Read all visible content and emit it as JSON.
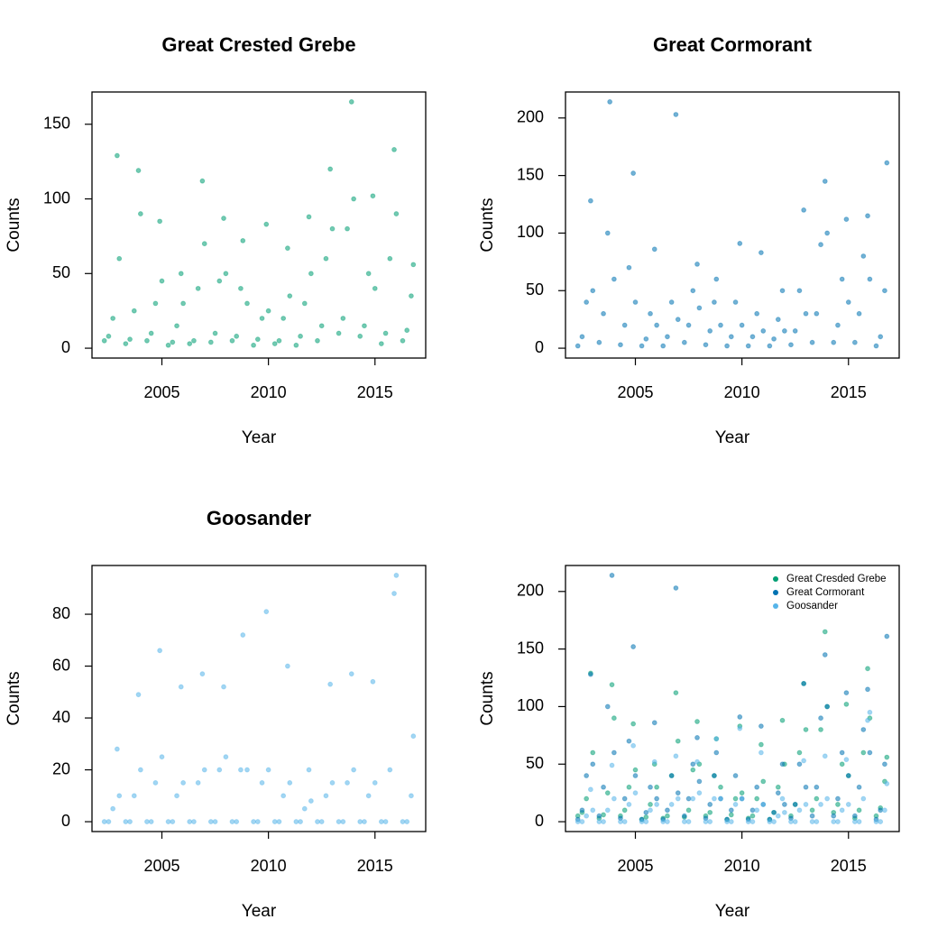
{
  "chart_data": [
    {
      "type": "scatter",
      "title": "Great Crested Grebe",
      "xlabel": "Year",
      "ylabel": "Counts",
      "xlim": [
        2001.72,
        2017.38
      ],
      "ylim": [
        -6.6,
        171.6
      ],
      "xticks": [
        2005,
        2010,
        2015
      ],
      "yticks": [
        0,
        50,
        100,
        150
      ],
      "x": [
        2002.3,
        2002.5,
        2002.7,
        2002.9,
        2003.0,
        2003.3,
        2003.5,
        2003.7,
        2003.9,
        2004.0,
        2004.3,
        2004.5,
        2004.7,
        2004.9,
        2005.0,
        2005.3,
        2005.5,
        2005.7,
        2005.9,
        2006.0,
        2006.3,
        2006.5,
        2006.7,
        2006.9,
        2007.0,
        2007.3,
        2007.5,
        2007.7,
        2007.9,
        2008.0,
        2008.3,
        2008.5,
        2008.7,
        2008.8,
        2009.0,
        2009.3,
        2009.5,
        2009.7,
        2009.9,
        2010.0,
        2010.3,
        2010.5,
        2010.7,
        2010.9,
        2011.0,
        2011.3,
        2011.5,
        2011.7,
        2011.9,
        2012.0,
        2012.3,
        2012.5,
        2012.7,
        2012.9,
        2013.0,
        2013.3,
        2013.5,
        2013.7,
        2013.9,
        2014.0,
        2014.3,
        2014.5,
        2014.7,
        2014.9,
        2015.0,
        2015.3,
        2015.5,
        2015.7,
        2015.9,
        2016.0,
        2016.3,
        2016.5,
        2016.7,
        2016.8
      ],
      "series": [
        {
          "color": "#009E73",
          "values": [
            5,
            8,
            20,
            129,
            60,
            3,
            6,
            25,
            119,
            90,
            5,
            10,
            30,
            85,
            45,
            2,
            4,
            15,
            50,
            30,
            3,
            5,
            40,
            112,
            70,
            4,
            10,
            45,
            87,
            50,
            5,
            8,
            40,
            72,
            30,
            2,
            6,
            20,
            83,
            25,
            3,
            5,
            20,
            67,
            35,
            2,
            8,
            30,
            88,
            50,
            5,
            15,
            60,
            120,
            80,
            10,
            20,
            80,
            165,
            100,
            8,
            15,
            50,
            102,
            40,
            3,
            10,
            60,
            133,
            90,
            5,
            12,
            35,
            56
          ]
        }
      ]
    },
    {
      "type": "scatter",
      "title": "Great Cormorant",
      "xlabel": "Year",
      "ylabel": "Counts",
      "xlim": [
        2001.72,
        2017.38
      ],
      "ylim": [
        -8.56,
        222.56
      ],
      "xticks": [
        2005,
        2010,
        2015
      ],
      "yticks": [
        0,
        50,
        100,
        150,
        200
      ],
      "x": [
        2002.3,
        2002.5,
        2002.7,
        2002.9,
        2003.0,
        2003.3,
        2003.5,
        2003.7,
        2003.8,
        2004.0,
        2004.3,
        2004.5,
        2004.7,
        2004.9,
        2005.0,
        2005.3,
        2005.5,
        2005.7,
        2005.9,
        2006.0,
        2006.3,
        2006.5,
        2006.7,
        2006.9,
        2007.0,
        2007.3,
        2007.5,
        2007.7,
        2007.9,
        2008.0,
        2008.3,
        2008.5,
        2008.7,
        2008.8,
        2009.0,
        2009.3,
        2009.5,
        2009.7,
        2009.9,
        2010.0,
        2010.3,
        2010.5,
        2010.7,
        2010.9,
        2011.0,
        2011.3,
        2011.5,
        2011.7,
        2011.9,
        2012.0,
        2012.3,
        2012.5,
        2012.7,
        2012.9,
        2013.0,
        2013.3,
        2013.5,
        2013.7,
        2013.9,
        2014.0,
        2014.3,
        2014.5,
        2014.7,
        2014.9,
        2015.0,
        2015.3,
        2015.5,
        2015.7,
        2015.9,
        2016.0,
        2016.3,
        2016.5,
        2016.7,
        2016.8
      ],
      "series": [
        {
          "color": "#0072B2",
          "values": [
            2,
            10,
            40,
            128,
            50,
            5,
            30,
            100,
            214,
            60,
            3,
            20,
            70,
            152,
            40,
            2,
            8,
            30,
            86,
            20,
            2,
            10,
            40,
            203,
            25,
            5,
            20,
            50,
            73,
            35,
            3,
            15,
            40,
            60,
            20,
            2,
            10,
            40,
            91,
            20,
            2,
            10,
            30,
            83,
            15,
            2,
            8,
            25,
            50,
            15,
            3,
            15,
            50,
            120,
            30,
            5,
            30,
            90,
            145,
            100,
            5,
            20,
            60,
            112,
            40,
            5,
            30,
            80,
            115,
            60,
            2,
            10,
            50,
            161
          ]
        }
      ]
    },
    {
      "type": "scatter",
      "title": "Goosander",
      "xlabel": "Year",
      "ylabel": "Counts",
      "xlim": [
        2001.72,
        2017.38
      ],
      "ylim": [
        -3.8,
        98.8
      ],
      "xticks": [
        2005,
        2010,
        2015
      ],
      "yticks": [
        0,
        20,
        40,
        60,
        80
      ],
      "x": [
        2002.3,
        2002.5,
        2002.7,
        2002.9,
        2003.0,
        2003.3,
        2003.5,
        2003.7,
        2003.9,
        2004.0,
        2004.3,
        2004.5,
        2004.7,
        2004.9,
        2005.0,
        2005.3,
        2005.5,
        2005.7,
        2005.9,
        2006.0,
        2006.3,
        2006.5,
        2006.7,
        2006.9,
        2007.0,
        2007.3,
        2007.5,
        2007.7,
        2007.9,
        2008.0,
        2008.3,
        2008.5,
        2008.7,
        2008.8,
        2009.0,
        2009.3,
        2009.5,
        2009.7,
        2009.9,
        2010.0,
        2010.3,
        2010.5,
        2010.7,
        2010.9,
        2011.0,
        2011.3,
        2011.5,
        2011.7,
        2011.9,
        2012.0,
        2012.3,
        2012.5,
        2012.7,
        2012.9,
        2013.0,
        2013.3,
        2013.5,
        2013.7,
        2013.9,
        2014.0,
        2014.3,
        2014.5,
        2014.7,
        2014.9,
        2015.0,
        2015.3,
        2015.5,
        2015.7,
        2015.9,
        2016.0,
        2016.3,
        2016.5,
        2016.7,
        2016.8
      ],
      "series": [
        {
          "color": "#56B4E9",
          "values": [
            0,
            0,
            5,
            28,
            10,
            0,
            0,
            10,
            49,
            20,
            0,
            0,
            15,
            66,
            25,
            0,
            0,
            10,
            52,
            15,
            0,
            0,
            15,
            57,
            20,
            0,
            0,
            20,
            52,
            25,
            0,
            0,
            20,
            72,
            20,
            0,
            0,
            15,
            81,
            20,
            0,
            0,
            10,
            60,
            15,
            0,
            0,
            5,
            20,
            8,
            0,
            0,
            10,
            53,
            15,
            0,
            0,
            15,
            57,
            20,
            0,
            0,
            10,
            54,
            15,
            0,
            0,
            20,
            88,
            95,
            0,
            0,
            10,
            33
          ]
        }
      ]
    },
    {
      "type": "scatter",
      "xlabel": "Year",
      "ylabel": "Counts",
      "legend": "topright",
      "xlim": [
        2001.72,
        2017.38
      ],
      "ylim": [
        -8.56,
        222.56
      ],
      "xticks": [
        2005,
        2010,
        2015
      ],
      "yticks": [
        0,
        50,
        100,
        150,
        200
      ],
      "x": [
        2002.3,
        2002.5,
        2002.7,
        2002.9,
        2003.0,
        2003.3,
        2003.5,
        2003.7,
        2003.9,
        2004.0,
        2004.3,
        2004.5,
        2004.7,
        2004.9,
        2005.0,
        2005.3,
        2005.5,
        2005.7,
        2005.9,
        2006.0,
        2006.3,
        2006.5,
        2006.7,
        2006.9,
        2007.0,
        2007.3,
        2007.5,
        2007.7,
        2007.9,
        2008.0,
        2008.3,
        2008.5,
        2008.7,
        2008.8,
        2009.0,
        2009.3,
        2009.5,
        2009.7,
        2009.9,
        2010.0,
        2010.3,
        2010.5,
        2010.7,
        2010.9,
        2011.0,
        2011.3,
        2011.5,
        2011.7,
        2011.9,
        2012.0,
        2012.3,
        2012.5,
        2012.7,
        2012.9,
        2013.0,
        2013.3,
        2013.5,
        2013.7,
        2013.9,
        2014.0,
        2014.3,
        2014.5,
        2014.7,
        2014.9,
        2015.0,
        2015.3,
        2015.5,
        2015.7,
        2015.9,
        2016.0,
        2016.3,
        2016.5,
        2016.7,
        2016.8
      ],
      "series": [
        {
          "name": "Great Cresded Grebe",
          "color": "#009E73",
          "values": [
            5,
            8,
            20,
            129,
            60,
            3,
            6,
            25,
            119,
            90,
            5,
            10,
            30,
            85,
            45,
            2,
            4,
            15,
            50,
            30,
            3,
            5,
            40,
            112,
            70,
            4,
            10,
            45,
            87,
            50,
            5,
            8,
            40,
            72,
            30,
            2,
            6,
            20,
            83,
            25,
            3,
            5,
            20,
            67,
            35,
            2,
            8,
            30,
            88,
            50,
            5,
            15,
            60,
            120,
            80,
            10,
            20,
            80,
            165,
            100,
            8,
            15,
            50,
            102,
            40,
            3,
            10,
            60,
            133,
            90,
            5,
            12,
            35,
            56
          ]
        },
        {
          "name": "Great Cormorant",
          "color": "#0072B2",
          "values": [
            2,
            10,
            40,
            128,
            50,
            5,
            30,
            100,
            214,
            60,
            3,
            20,
            70,
            152,
            40,
            2,
            8,
            30,
            86,
            20,
            2,
            10,
            40,
            203,
            25,
            5,
            20,
            50,
            73,
            35,
            3,
            15,
            40,
            60,
            20,
            2,
            10,
            40,
            91,
            20,
            2,
            10,
            30,
            83,
            15,
            2,
            8,
            25,
            50,
            15,
            3,
            15,
            50,
            120,
            30,
            5,
            30,
            90,
            145,
            100,
            5,
            20,
            60,
            112,
            40,
            5,
            30,
            80,
            115,
            60,
            2,
            10,
            50,
            161
          ]
        },
        {
          "name": "Goosander",
          "color": "#56B4E9",
          "values": [
            0,
            0,
            5,
            28,
            10,
            0,
            0,
            10,
            49,
            20,
            0,
            0,
            15,
            66,
            25,
            0,
            0,
            10,
            52,
            15,
            0,
            0,
            15,
            57,
            20,
            0,
            0,
            20,
            52,
            25,
            0,
            0,
            20,
            72,
            20,
            0,
            0,
            15,
            81,
            20,
            0,
            0,
            10,
            60,
            15,
            0,
            0,
            5,
            20,
            8,
            0,
            0,
            10,
            53,
            15,
            0,
            0,
            15,
            57,
            20,
            0,
            0,
            10,
            54,
            15,
            0,
            0,
            20,
            88,
            95,
            0,
            0,
            10,
            33
          ]
        }
      ]
    }
  ]
}
